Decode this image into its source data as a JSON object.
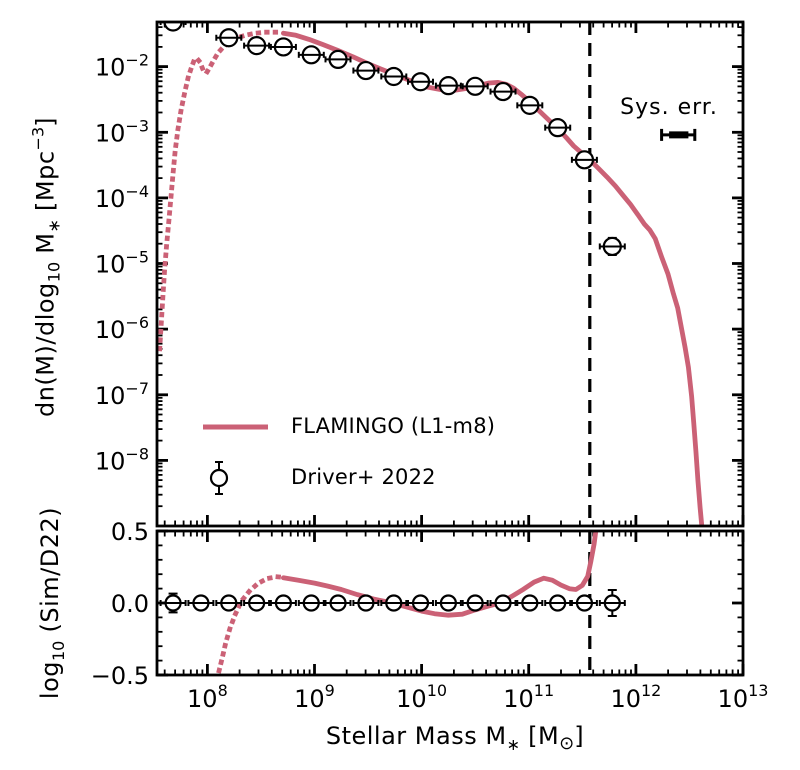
{
  "figure": {
    "background": "#ffffff",
    "accent_color": "#cb6176",
    "frame_color": "#000000",
    "marker_fill": "#ffffff"
  },
  "labels": {
    "ylabel_main": {
      "p1": "dn(M)/dlog",
      "sub1": "10",
      "p2": " M",
      "sub2": "∗",
      "p3": " [Mpc",
      "sup1": "−3",
      "p4": "]"
    },
    "ylabel_ratio": {
      "p1": "log",
      "sub1": "10",
      "p2": " (Sim/D22)"
    },
    "xlabel": {
      "p1": "Stellar Mass   M",
      "sub1": "∗",
      "p2": "  [M",
      "sub2": "⊙",
      "p3": "]"
    },
    "sys_err": "Sys. err.",
    "legend": {
      "items": [
        {
          "label": "FLAMINGO (L1-m8)"
        },
        {
          "label": "Driver+ 2022"
        }
      ]
    }
  },
  "chart_data": {
    "xlabel": "Stellar Mass M* [M_sun]",
    "vline_log10": 11.57,
    "sys_err_bar": {
      "y_log10": -3.04,
      "x_log10_min": 12.24,
      "x_log10_max": 12.55,
      "thick_min": 12.31,
      "thick_max": 12.49
    },
    "panels": [
      {
        "name": "stellar-mass-function",
        "type": "line",
        "xscale": "log",
        "yscale": "log",
        "xlim_log10": [
          7.53,
          13.0
        ],
        "ylim_log10": [
          -9.0,
          -1.32
        ],
        "xticks_log10": [
          8,
          9,
          10,
          11,
          12,
          13
        ],
        "yticks_log10": [
          -2,
          -3,
          -4,
          -5,
          -6,
          -7,
          -8
        ],
        "ylabel": "dn(M)/dlog10 M* [Mpc^-3]",
        "series": [
          {
            "name": "FLAMINGO (L1-m8)",
            "style": "dotted",
            "points": [
              [
                7.555,
                -6.3
              ],
              [
                7.57,
                -5.9
              ],
              [
                7.585,
                -5.5
              ],
              [
                7.6,
                -5.12
              ],
              [
                7.62,
                -4.72
              ],
              [
                7.64,
                -4.36
              ],
              [
                7.66,
                -4.0
              ],
              [
                7.68,
                -3.62
              ],
              [
                7.7,
                -3.28
              ],
              [
                7.725,
                -2.96
              ],
              [
                7.755,
                -2.66
              ],
              [
                7.79,
                -2.38
              ],
              [
                7.82,
                -2.17
              ],
              [
                7.85,
                -2.02
              ],
              [
                7.875,
                -1.91
              ],
              [
                7.9,
                -1.87
              ],
              [
                7.93,
                -1.93
              ],
              [
                7.96,
                -2.05
              ],
              [
                7.99,
                -2.1
              ],
              [
                8.02,
                -2.02
              ],
              [
                8.06,
                -1.9
              ],
              [
                8.1,
                -1.79
              ],
              [
                8.15,
                -1.7
              ],
              [
                8.21,
                -1.62
              ],
              [
                8.28,
                -1.56
              ],
              [
                8.36,
                -1.52
              ],
              [
                8.45,
                -1.49
              ],
              [
                8.55,
                -1.475
              ],
              [
                8.64,
                -1.475
              ],
              [
                8.71,
                -1.49
              ]
            ]
          },
          {
            "name": "FLAMINGO (L1-m8)",
            "style": "solid",
            "points": [
              [
                8.71,
                -1.49
              ],
              [
                8.82,
                -1.52
              ],
              [
                8.95,
                -1.585
              ],
              [
                9.08,
                -1.665
              ],
              [
                9.22,
                -1.755
              ],
              [
                9.36,
                -1.85
              ],
              [
                9.5,
                -1.955
              ],
              [
                9.64,
                -2.05
              ],
              [
                9.78,
                -2.14
              ],
              [
                9.92,
                -2.23
              ],
              [
                10.05,
                -2.31
              ],
              [
                10.18,
                -2.35
              ],
              [
                10.31,
                -2.36
              ],
              [
                10.43,
                -2.33
              ],
              [
                10.54,
                -2.285
              ],
              [
                10.63,
                -2.25
              ],
              [
                10.71,
                -2.24
              ],
              [
                10.79,
                -2.27
              ],
              [
                10.86,
                -2.33
              ],
              [
                10.93,
                -2.42
              ],
              [
                11.0,
                -2.52
              ],
              [
                11.07,
                -2.63
              ],
              [
                11.14,
                -2.74
              ],
              [
                11.21,
                -2.85
              ],
              [
                11.28,
                -2.96
              ],
              [
                11.35,
                -3.08
              ],
              [
                11.42,
                -3.21
              ],
              [
                11.49,
                -3.31
              ],
              [
                11.57,
                -3.42
              ],
              [
                11.65,
                -3.55
              ],
              [
                11.73,
                -3.68
              ],
              [
                11.81,
                -3.82
              ],
              [
                11.88,
                -3.96
              ],
              [
                11.95,
                -4.1
              ],
              [
                12.02,
                -4.26
              ],
              [
                12.08,
                -4.4
              ],
              [
                12.13,
                -4.49
              ],
              [
                12.18,
                -4.62
              ],
              [
                12.24,
                -4.9
              ],
              [
                12.3,
                -5.16
              ],
              [
                12.35,
                -5.46
              ],
              [
                12.39,
                -5.68
              ],
              [
                12.43,
                -6.02
              ],
              [
                12.46,
                -6.28
              ],
              [
                12.49,
                -6.58
              ],
              [
                12.52,
                -7.02
              ],
              [
                12.54,
                -7.42
              ],
              [
                12.56,
                -7.86
              ],
              [
                12.58,
                -8.32
              ],
              [
                12.6,
                -8.72
              ],
              [
                12.615,
                -9.0
              ]
            ]
          },
          {
            "name": "Driver+ 2022",
            "style": "scatter",
            "points": [
              [
                7.68,
                -1.32,
                0.06
              ],
              [
                8.2,
                -1.56,
                0.035
              ],
              [
                8.46,
                -1.68,
                0.035
              ],
              [
                8.71,
                -1.7,
                0.035
              ],
              [
                8.97,
                -1.82,
                0.035
              ],
              [
                9.22,
                -1.89,
                0.035
              ],
              [
                9.48,
                -2.06,
                0.035
              ],
              [
                9.74,
                -2.15,
                0.035
              ],
              [
                9.99,
                -2.23,
                0.035
              ],
              [
                10.25,
                -2.29,
                0.035
              ],
              [
                10.5,
                -2.3,
                0.035
              ],
              [
                10.76,
                -2.38,
                0.04
              ],
              [
                11.01,
                -2.59,
                0.045
              ],
              [
                11.27,
                -2.93,
                0.055
              ],
              [
                11.52,
                -3.42,
                0.06
              ],
              [
                11.78,
                -4.74,
                0.13
              ]
            ]
          }
        ]
      },
      {
        "name": "ratio-sim-over-d22",
        "type": "line",
        "xscale": "log",
        "ylim": [
          -0.5,
          0.5
        ],
        "yticks": [
          0.5,
          0.0,
          -0.5
        ],
        "ytick_labels": [
          "0.5",
          "0.0",
          "−0.5"
        ],
        "minor_step": 0.1,
        "ylabel": "log10(Sim/D22)",
        "series": [
          {
            "name": "FLAMINGO (L1-m8)",
            "style": "dotted",
            "points": [
              [
                8.11,
                -0.47
              ],
              [
                8.14,
                -0.38
              ],
              [
                8.17,
                -0.28
              ],
              [
                8.21,
                -0.18
              ],
              [
                8.26,
                -0.08
              ],
              [
                8.32,
                0.015
              ],
              [
                8.39,
                0.08
              ],
              [
                8.47,
                0.135
              ],
              [
                8.56,
                0.17
              ],
              [
                8.65,
                0.182
              ],
              [
                8.71,
                0.178
              ]
            ]
          },
          {
            "name": "FLAMINGO (L1-m8)",
            "style": "solid",
            "points": [
              [
                8.71,
                0.175
              ],
              [
                8.85,
                0.158
              ],
              [
                9.0,
                0.138
              ],
              [
                9.12,
                0.118
              ],
              [
                9.25,
                0.094
              ],
              [
                9.4,
                0.058
              ],
              [
                9.55,
                0.028
              ],
              [
                9.7,
                0.004
              ],
              [
                9.85,
                -0.026
              ],
              [
                10.0,
                -0.056
              ],
              [
                10.12,
                -0.074
              ],
              [
                10.25,
                -0.085
              ],
              [
                10.38,
                -0.078
              ],
              [
                10.5,
                -0.048
              ],
              [
                10.62,
                -0.022
              ],
              [
                10.74,
                0.002
              ],
              [
                10.85,
                0.05
              ],
              [
                10.95,
                0.095
              ],
              [
                11.05,
                0.145
              ],
              [
                11.14,
                0.172
              ],
              [
                11.22,
                0.158
              ],
              [
                11.3,
                0.124
              ],
              [
                11.38,
                0.099
              ],
              [
                11.44,
                0.094
              ],
              [
                11.5,
                0.122
              ],
              [
                11.55,
                0.185
              ],
              [
                11.58,
                0.29
              ],
              [
                11.61,
                0.41
              ],
              [
                11.63,
                0.52
              ]
            ]
          },
          {
            "name": "Driver+ 2022",
            "style": "scatter",
            "points": [
              [
                7.68,
                0.0,
                0.065
              ],
              [
                7.94,
                0.0,
                0.045
              ],
              [
                8.2,
                0.0,
                0.035
              ],
              [
                8.46,
                0.0,
                0.035
              ],
              [
                8.71,
                0.0,
                0.03
              ],
              [
                8.97,
                0.0,
                0.03
              ],
              [
                9.22,
                0.0,
                0.03
              ],
              [
                9.48,
                0.0,
                0.03
              ],
              [
                9.74,
                0.0,
                0.03
              ],
              [
                9.99,
                0.0,
                0.03
              ],
              [
                10.25,
                0.0,
                0.03
              ],
              [
                10.5,
                0.0,
                0.03
              ],
              [
                10.76,
                0.0,
                0.03
              ],
              [
                11.01,
                0.0,
                0.03
              ],
              [
                11.27,
                0.0,
                0.035
              ],
              [
                11.52,
                0.0,
                0.035
              ],
              [
                11.78,
                0.0,
                0.09
              ]
            ]
          }
        ]
      }
    ]
  }
}
